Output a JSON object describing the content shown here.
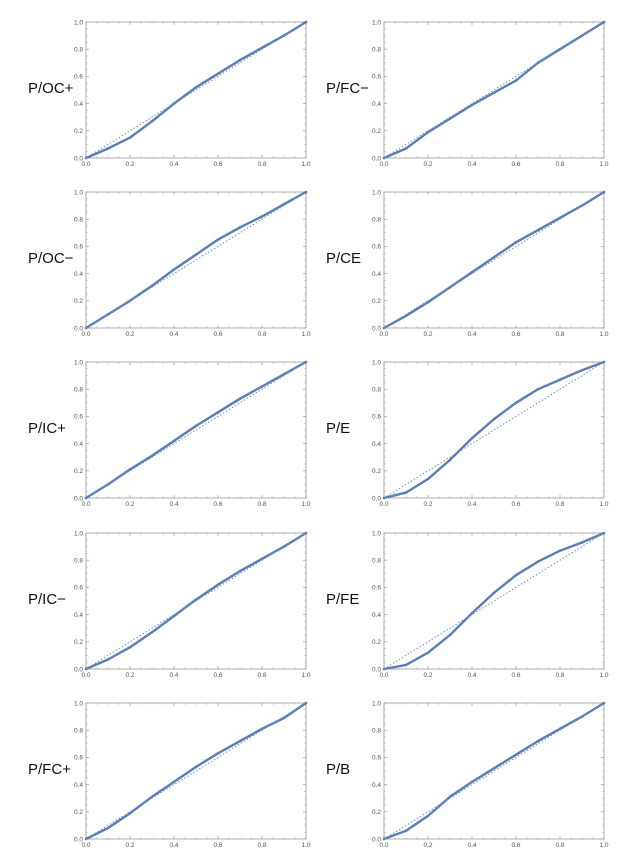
{
  "colors": {
    "curve": "#5a7fb3",
    "reference": "#6a8cc0",
    "axis": "#9a9a9a",
    "tick_text": "#555555"
  },
  "chart_data": [
    {
      "type": "line",
      "label": "P/OC+",
      "x": [
        0,
        0.1,
        0.2,
        0.3,
        0.4,
        0.5,
        0.6,
        0.7,
        0.8,
        0.9,
        1.0
      ],
      "series": [
        {
          "values": [
            0.0,
            0.07,
            0.15,
            0.27,
            0.4,
            0.52,
            0.62,
            0.72,
            0.81,
            0.9,
            1.0
          ]
        },
        {
          "values": [
            0.0,
            0.1,
            0.2,
            0.3,
            0.4,
            0.5,
            0.6,
            0.7,
            0.8,
            0.9,
            1.0
          ]
        }
      ],
      "xticks": [
        "0.0",
        "0.2",
        "0.4",
        "0.6",
        "0.8",
        "1.0"
      ],
      "yticks": [
        "0.0",
        "0.2",
        "0.4",
        "0.6",
        "0.8",
        "1.0"
      ],
      "xlim": [
        0,
        1
      ],
      "ylim": [
        0,
        1
      ]
    },
    {
      "type": "line",
      "label": "P/FC−",
      "x": [
        0,
        0.1,
        0.2,
        0.3,
        0.4,
        0.5,
        0.6,
        0.7,
        0.8,
        0.9,
        1.0
      ],
      "series": [
        {
          "values": [
            0.0,
            0.07,
            0.19,
            0.29,
            0.39,
            0.48,
            0.57,
            0.7,
            0.8,
            0.9,
            1.0
          ]
        },
        {
          "values": [
            0.0,
            0.1,
            0.2,
            0.3,
            0.4,
            0.5,
            0.6,
            0.7,
            0.8,
            0.9,
            1.0
          ]
        }
      ],
      "xticks": [
        "0.0",
        "0.2",
        "0.4",
        "0.6",
        "0.8",
        "1.0"
      ],
      "yticks": [
        "0.0",
        "0.2",
        "0.4",
        "0.6",
        "0.8",
        "1.0"
      ],
      "xlim": [
        0,
        1
      ],
      "ylim": [
        0,
        1
      ]
    },
    {
      "type": "line",
      "label": "P/OC−",
      "x": [
        0,
        0.1,
        0.2,
        0.3,
        0.4,
        0.5,
        0.6,
        0.7,
        0.8,
        0.9,
        1.0
      ],
      "series": [
        {
          "values": [
            0.0,
            0.1,
            0.2,
            0.31,
            0.43,
            0.54,
            0.65,
            0.74,
            0.82,
            0.91,
            1.0
          ]
        },
        {
          "values": [
            0.0,
            0.1,
            0.2,
            0.3,
            0.4,
            0.5,
            0.6,
            0.7,
            0.8,
            0.9,
            1.0
          ]
        }
      ],
      "xticks": [
        "0.0",
        "0.2",
        "0.4",
        "0.6",
        "0.8",
        "1.0"
      ],
      "yticks": [
        "0.0",
        "0.2",
        "0.4",
        "0.6",
        "0.8",
        "1.0"
      ],
      "xlim": [
        0,
        1
      ],
      "ylim": [
        0,
        1
      ]
    },
    {
      "type": "line",
      "label": "P/CE",
      "x": [
        0,
        0.1,
        0.2,
        0.3,
        0.4,
        0.5,
        0.6,
        0.7,
        0.8,
        0.9,
        1.0
      ],
      "series": [
        {
          "values": [
            0.0,
            0.09,
            0.19,
            0.3,
            0.41,
            0.52,
            0.63,
            0.72,
            0.81,
            0.9,
            1.0
          ]
        },
        {
          "values": [
            0.0,
            0.1,
            0.2,
            0.3,
            0.4,
            0.5,
            0.6,
            0.7,
            0.8,
            0.9,
            1.0
          ]
        }
      ],
      "xticks": [
        "0.0",
        "0.2",
        "0.4",
        "0.6",
        "0.8",
        "1.0"
      ],
      "yticks": [
        "0.0",
        "0.2",
        "0.4",
        "0.6",
        "0.8",
        "1.0"
      ],
      "xlim": [
        0,
        1
      ],
      "ylim": [
        0,
        1
      ]
    },
    {
      "type": "line",
      "label": "P/IC+",
      "x": [
        0,
        0.1,
        0.2,
        0.3,
        0.4,
        0.5,
        0.6,
        0.7,
        0.8,
        0.9,
        1.0
      ],
      "series": [
        {
          "values": [
            0.0,
            0.1,
            0.21,
            0.31,
            0.42,
            0.53,
            0.63,
            0.73,
            0.82,
            0.91,
            1.0
          ]
        },
        {
          "values": [
            0.0,
            0.1,
            0.2,
            0.3,
            0.4,
            0.5,
            0.6,
            0.7,
            0.8,
            0.9,
            1.0
          ]
        }
      ],
      "xticks": [
        "0.0",
        "0.2",
        "0.4",
        "0.6",
        "0.8",
        "1.0"
      ],
      "yticks": [
        "0.0",
        "0.2",
        "0.4",
        "0.6",
        "0.8",
        "1.0"
      ],
      "xlim": [
        0,
        1
      ],
      "ylim": [
        0,
        1
      ]
    },
    {
      "type": "line",
      "label": "P/E",
      "x": [
        0,
        0.1,
        0.2,
        0.3,
        0.4,
        0.5,
        0.6,
        0.7,
        0.8,
        0.9,
        1.0
      ],
      "series": [
        {
          "values": [
            0.0,
            0.04,
            0.14,
            0.28,
            0.44,
            0.58,
            0.7,
            0.8,
            0.87,
            0.94,
            1.0
          ]
        },
        {
          "values": [
            0.0,
            0.1,
            0.2,
            0.3,
            0.4,
            0.5,
            0.6,
            0.7,
            0.8,
            0.9,
            1.0
          ]
        }
      ],
      "xticks": [
        "0.0",
        "0.2",
        "0.4",
        "0.6",
        "0.8",
        "1.0"
      ],
      "yticks": [
        "0.0",
        "0.2",
        "0.4",
        "0.6",
        "0.8",
        "1.0"
      ],
      "xlim": [
        0,
        1
      ],
      "ylim": [
        0,
        1
      ]
    },
    {
      "type": "line",
      "label": "P/IC−",
      "x": [
        0,
        0.1,
        0.2,
        0.3,
        0.4,
        0.5,
        0.6,
        0.7,
        0.8,
        0.9,
        1.0
      ],
      "series": [
        {
          "values": [
            0.0,
            0.07,
            0.16,
            0.27,
            0.39,
            0.51,
            0.62,
            0.72,
            0.81,
            0.9,
            1.0
          ]
        },
        {
          "values": [
            0.0,
            0.1,
            0.2,
            0.3,
            0.4,
            0.5,
            0.6,
            0.7,
            0.8,
            0.9,
            1.0
          ]
        }
      ],
      "xticks": [
        "0.0",
        "0.2",
        "0.4",
        "0.6",
        "0.8",
        "1.0"
      ],
      "yticks": [
        "0.0",
        "0.2",
        "0.4",
        "0.6",
        "0.8",
        "1.0"
      ],
      "xlim": [
        0,
        1
      ],
      "ylim": [
        0,
        1
      ]
    },
    {
      "type": "line",
      "label": "P/FE",
      "x": [
        0,
        0.1,
        0.2,
        0.3,
        0.4,
        0.5,
        0.6,
        0.7,
        0.8,
        0.9,
        1.0
      ],
      "series": [
        {
          "values": [
            0.0,
            0.03,
            0.12,
            0.25,
            0.41,
            0.56,
            0.69,
            0.79,
            0.87,
            0.93,
            1.0
          ]
        },
        {
          "values": [
            0.0,
            0.1,
            0.2,
            0.3,
            0.4,
            0.5,
            0.6,
            0.7,
            0.8,
            0.9,
            1.0
          ]
        }
      ],
      "xticks": [
        "0.0",
        "0.2",
        "0.4",
        "0.6",
        "0.8",
        "1.0"
      ],
      "yticks": [
        "0.0",
        "0.2",
        "0.4",
        "0.6",
        "0.8",
        "1.0"
      ],
      "xlim": [
        0,
        1
      ],
      "ylim": [
        0,
        1
      ]
    },
    {
      "type": "line",
      "label": "P/FC+",
      "x": [
        0,
        0.1,
        0.2,
        0.3,
        0.4,
        0.5,
        0.6,
        0.7,
        0.8,
        0.9,
        1.0
      ],
      "series": [
        {
          "values": [
            0.0,
            0.08,
            0.19,
            0.31,
            0.42,
            0.53,
            0.63,
            0.72,
            0.81,
            0.89,
            1.0
          ]
        },
        {
          "values": [
            0.0,
            0.1,
            0.2,
            0.3,
            0.4,
            0.5,
            0.6,
            0.7,
            0.8,
            0.9,
            1.0
          ]
        }
      ],
      "xticks": [
        "0.0",
        "0.2",
        "0.4",
        "0.6",
        "0.8",
        "1.0"
      ],
      "yticks": [
        "0.0",
        "0.2",
        "0.4",
        "0.6",
        "0.8",
        "1.0"
      ],
      "xlim": [
        0,
        1
      ],
      "ylim": [
        0,
        1
      ]
    },
    {
      "type": "line",
      "label": "P/B",
      "x": [
        0,
        0.1,
        0.2,
        0.3,
        0.4,
        0.5,
        0.6,
        0.7,
        0.8,
        0.9,
        1.0
      ],
      "series": [
        {
          "values": [
            0.0,
            0.06,
            0.17,
            0.31,
            0.42,
            0.52,
            0.62,
            0.72,
            0.81,
            0.9,
            1.0
          ]
        },
        {
          "values": [
            0.0,
            0.1,
            0.2,
            0.3,
            0.4,
            0.5,
            0.6,
            0.7,
            0.8,
            0.9,
            1.0
          ]
        }
      ],
      "xticks": [
        "0.0",
        "0.2",
        "0.4",
        "0.6",
        "0.8",
        "1.0"
      ],
      "yticks": [
        "0.0",
        "0.2",
        "0.4",
        "0.6",
        "0.8",
        "1.0"
      ],
      "xlim": [
        0,
        1
      ],
      "ylim": [
        0,
        1
      ]
    }
  ]
}
